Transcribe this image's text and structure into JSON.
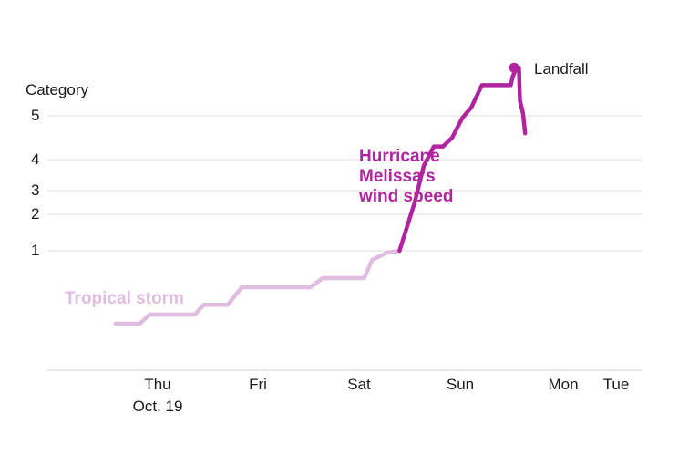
{
  "chart_data": {
    "type": "line",
    "title": "",
    "ylabel": "Category",
    "xlabel": "",
    "y_ticks": [
      {
        "label": "5",
        "value": 5
      },
      {
        "label": "4",
        "value": 4
      },
      {
        "label": "3",
        "value": 3
      },
      {
        "label": "2",
        "value": 2
      },
      {
        "label": "1",
        "value": 1
      }
    ],
    "x_ticks": [
      {
        "label": "Thu",
        "sublabel": "Oct. 19",
        "day": 1
      },
      {
        "label": "Fri",
        "sublabel": "",
        "day": 2
      },
      {
        "label": "Sat",
        "sublabel": "",
        "day": 3
      },
      {
        "label": "Sun",
        "sublabel": "",
        "day": 4
      },
      {
        "label": "Mon",
        "sublabel": "",
        "day": 5
      },
      {
        "label": "Tue",
        "sublabel": "",
        "day": 6
      }
    ],
    "xlim": [
      0.0,
      6.0
    ],
    "grid": true,
    "series": [
      {
        "name": "Tropical storm",
        "color": "#e0bde0",
        "points": [
          [
            0.58,
            -1.0
          ],
          [
            0.82,
            -1.0
          ],
          [
            0.92,
            -0.75
          ],
          [
            1.37,
            -0.75
          ],
          [
            1.46,
            -0.48
          ],
          [
            1.7,
            -0.48
          ],
          [
            1.84,
            -0.0
          ],
          [
            2.52,
            -0.0
          ],
          [
            2.64,
            0.25
          ],
          [
            3.05,
            0.25
          ],
          [
            3.13,
            0.75
          ],
          [
            3.28,
            0.95
          ],
          [
            3.4,
            1.0
          ]
        ]
      },
      {
        "name": "Hurricane Melissa's wind speed",
        "color": "#b0249f",
        "points": [
          [
            3.4,
            1.0
          ],
          [
            3.55,
            2.5
          ],
          [
            3.64,
            3.8
          ],
          [
            3.74,
            4.3
          ],
          [
            3.83,
            4.3
          ],
          [
            3.92,
            4.5
          ],
          [
            4.02,
            4.95
          ],
          [
            4.11,
            5.2
          ],
          [
            4.21,
            5.7
          ],
          [
            4.49,
            5.7
          ],
          [
            4.51,
            5.9
          ],
          [
            4.55,
            6.1
          ],
          [
            4.57,
            6.1
          ],
          [
            4.58,
            5.35
          ],
          [
            4.61,
            5.05
          ],
          [
            4.63,
            4.6
          ]
        ]
      }
    ],
    "annotations": [
      {
        "text_lines": [
          "Hurricane",
          "Melissa's",
          "wind speed"
        ],
        "color": "#b0249f"
      },
      {
        "text_lines": [
          "Tropical storm"
        ],
        "color": "#e0bde0"
      },
      {
        "text_lines": [
          "Landfall"
        ],
        "marker_at": [
          4.55,
          6.1
        ],
        "color": "#1a1a1a"
      }
    ]
  }
}
